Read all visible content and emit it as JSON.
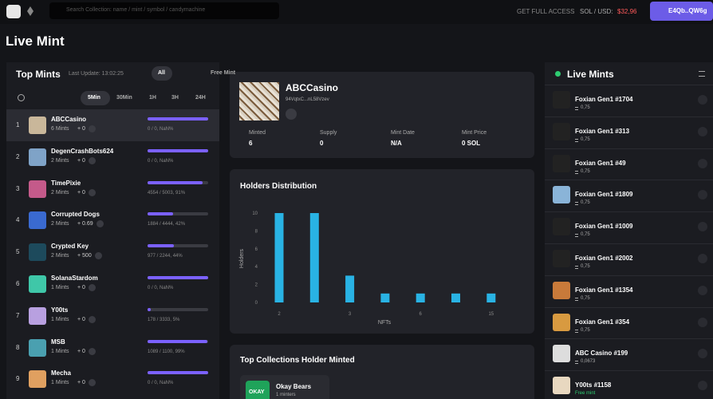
{
  "topbar": {
    "search_placeholder": "Search Collection: name / mint / symbol / candymachine",
    "full_access": "GET FULL ACCESS",
    "sol_usd_label": "SOL / USD:",
    "sol_usd": "$32,96",
    "wallet": "E4Qb..QW6g"
  },
  "page_title": "Live Mint",
  "top_mints": {
    "title": "Top Mints",
    "last_update": "Last Update: 13:02:25",
    "filters": [
      "All",
      "Free Mint"
    ],
    "periods": [
      "5Min",
      "30Min",
      "1H",
      "3H",
      "24H"
    ],
    "rows": [
      {
        "rank": 1,
        "name": "ABCCasino",
        "mints": "6 Mints",
        "delta": "+ 0",
        "stat": "0 / 0, NaN%",
        "progress": 100
      },
      {
        "rank": 2,
        "name": "DegenCrashBots624",
        "mints": "2 Mints",
        "delta": "+ 0",
        "stat": "0 / 0, NaN%",
        "progress": 100
      },
      {
        "rank": 3,
        "name": "TimePixie",
        "mints": "2 Mints",
        "delta": "+ 0",
        "stat": "4554 / 5003, 91%",
        "progress": 91
      },
      {
        "rank": 4,
        "name": "Corrupted Dogs",
        "mints": "2 Mints",
        "delta": "+ 0.69",
        "stat": "1884 / 4444, 42%",
        "progress": 42
      },
      {
        "rank": 5,
        "name": "Crypted Key",
        "mints": "2 Mints",
        "delta": "+ 500",
        "stat": "977 / 2244, 44%",
        "progress": 44
      },
      {
        "rank": 6,
        "name": "SolanaStardom",
        "mints": "1 Mints",
        "delta": "+ 0",
        "stat": "0 / 0, NaN%",
        "progress": 100
      },
      {
        "rank": 7,
        "name": "Y00ts",
        "mints": "1 Mints",
        "delta": "+ 0",
        "stat": "178 / 3333, 5%",
        "progress": 5
      },
      {
        "rank": 8,
        "name": "MSB",
        "mints": "1 Mints",
        "delta": "+ 0",
        "stat": "1089 / 1100, 99%",
        "progress": 99
      },
      {
        "rank": 9,
        "name": "Mecha",
        "mints": "1 Mints",
        "delta": "+ 0",
        "stat": "0 / 0, NaN%",
        "progress": 100
      }
    ]
  },
  "selected": {
    "name": "ABCCasino",
    "address": "94VqtxC...nL58Vzev",
    "stats": [
      {
        "label": "Minted",
        "value": "6"
      },
      {
        "label": "Supply",
        "value": "0"
      },
      {
        "label": "Mint Date",
        "value": "N/A"
      },
      {
        "label": "Mint Price",
        "value": "0 SOL"
      }
    ]
  },
  "chart_data": {
    "type": "bar",
    "title": "Holders Distribution",
    "ylabel": "Holders",
    "xlabel": "NFTs",
    "categories": [
      "2",
      null,
      "3",
      null,
      "6",
      null,
      "15"
    ],
    "values": [
      10,
      10,
      3,
      1,
      1,
      1,
      1
    ],
    "color": "#29b3e4",
    "ylim": [
      0,
      10
    ],
    "yticks": [
      0,
      2,
      4,
      6,
      8,
      10
    ]
  },
  "top_collections": {
    "title": "Top Collections Holder Minted",
    "items": [
      {
        "logo": "OKAY",
        "name": "Okay Bears",
        "minters": "1 minters"
      }
    ]
  },
  "live_mints": {
    "title": "Live Mints",
    "items": [
      {
        "name": "Foxian Gen1 #1704",
        "price": "0,75"
      },
      {
        "name": "Foxian Gen1 #313",
        "price": "0,75"
      },
      {
        "name": "Foxian Gen1 #49",
        "price": "0,75"
      },
      {
        "name": "Foxian Gen1 #1809",
        "price": "0,75"
      },
      {
        "name": "Foxian Gen1 #1009",
        "price": "0,75"
      },
      {
        "name": "Foxian Gen1 #2002",
        "price": "0,75"
      },
      {
        "name": "Foxian Gen1 #1354",
        "price": "0,75"
      },
      {
        "name": "Foxian Gen1 #354",
        "price": "0,75"
      },
      {
        "name": "ABC Casino #199",
        "price": "0,0673"
      },
      {
        "name": "Y00ts #1158",
        "free": "Free mint"
      }
    ]
  }
}
